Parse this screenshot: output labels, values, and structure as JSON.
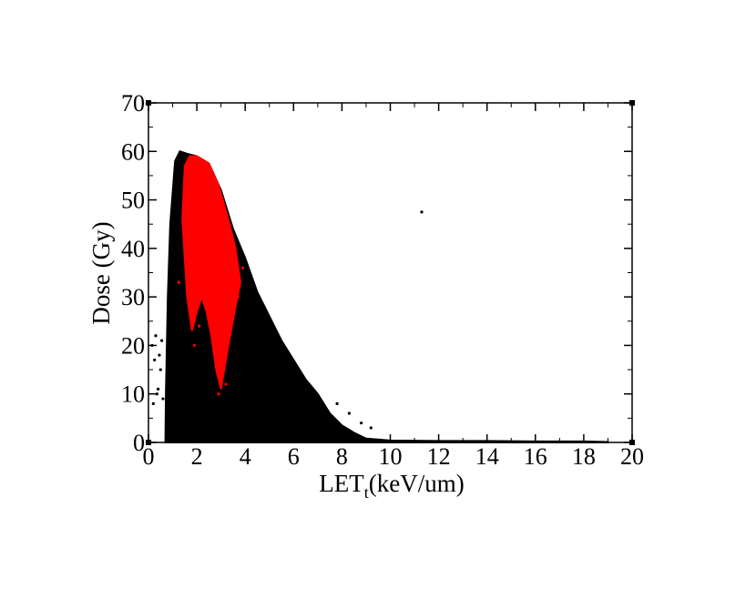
{
  "chart_data": {
    "type": "scatter",
    "ylabel": "Dose (Gy)",
    "xlabel": "LET",
    "xlabel_subscript": "t",
    "xlabel_suffix": "(keV/um)",
    "xlim": [
      0,
      20
    ],
    "ylim": [
      0,
      70
    ],
    "xticks": [
      0,
      2,
      4,
      6,
      8,
      10,
      12,
      14,
      16,
      18,
      20
    ],
    "yticks": [
      0,
      10,
      20,
      30,
      40,
      50,
      60,
      70
    ],
    "xminorticks": [
      1,
      3,
      5,
      7,
      9,
      11,
      13,
      15,
      17,
      19
    ],
    "yminorticks": [
      5,
      15,
      25,
      35,
      45,
      55,
      65
    ],
    "series": [
      {
        "color": "#000000",
        "style": "region",
        "x": [
          0.7,
          0.72,
          0.8,
          0.9,
          1.1,
          1.3,
          1.6,
          2,
          2.5,
          3,
          3.5,
          4,
          4.5,
          5,
          5.5,
          6,
          6.5,
          7,
          7.5,
          8,
          8.5,
          9,
          10,
          12,
          14,
          16,
          18,
          19,
          19
        ],
        "y": [
          0,
          10,
          30,
          45,
          58,
          60,
          59.5,
          59,
          57.5,
          52,
          44,
          38,
          31,
          26,
          21,
          17,
          13,
          10,
          6,
          3.5,
          2,
          0.8,
          0.4,
          0.3,
          0.3,
          0.2,
          0.2,
          0.1,
          0
        ]
      },
      {
        "color": "#ff0000",
        "style": "region",
        "x": [
          1.4,
          1.5,
          1.7,
          2,
          2.5,
          2.9,
          3.3,
          3.6,
          3.8,
          3.6,
          3.3,
          3.1,
          3,
          2.8,
          2.6,
          2.4,
          2.2,
          2,
          1.8,
          1.6,
          1.5
        ],
        "y": [
          46,
          57,
          59,
          59,
          57.5,
          53,
          46,
          40,
          33,
          28,
          20,
          14,
          11,
          15,
          22,
          27,
          30,
          27,
          23,
          30,
          38
        ]
      },
      {
        "color": "#000000",
        "style": "points",
        "x": [
          0.15,
          0.3,
          0.45,
          0.25,
          0.5,
          0.35,
          0.6,
          0.2,
          0.55,
          0.4,
          11.3,
          7.8,
          8.3,
          8.8,
          9.2
        ],
        "y": [
          20,
          22,
          18,
          17,
          15,
          10,
          9,
          8,
          21,
          11,
          47.5,
          8,
          6,
          4,
          3
        ]
      },
      {
        "color": "#ff0000",
        "style": "points",
        "x": [
          1.25,
          3.9,
          3.7,
          3.2,
          2.9,
          2.1,
          1.9
        ],
        "y": [
          33,
          36,
          30,
          12,
          10,
          24,
          20
        ]
      }
    ]
  }
}
